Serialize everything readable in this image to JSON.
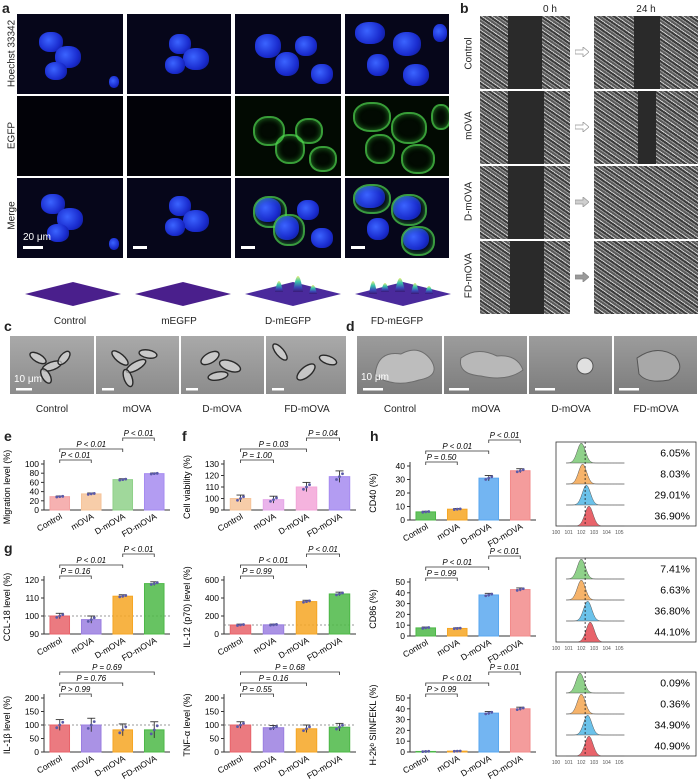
{
  "panel_a": {
    "label": "a",
    "rows": [
      "Hoechst 33342",
      "EGFP",
      "Merge"
    ],
    "columns": [
      "Control",
      "mEGFP",
      "D-mEGFP",
      "FD-mEGFP"
    ],
    "scale_bar": "20 μm"
  },
  "panel_b": {
    "label": "b",
    "times": [
      "0 h",
      "24 h"
    ],
    "rows": [
      "Control",
      "mOVA",
      "D-mOVA",
      "FD-mOVA"
    ]
  },
  "panel_c": {
    "label": "c",
    "columns": [
      "Control",
      "mOVA",
      "D-mOVA",
      "FD-mOVA"
    ],
    "scale_bar": "10 μm"
  },
  "panel_d": {
    "label": "d",
    "columns": [
      "Control",
      "mOVA",
      "D-mOVA",
      "FD-mOVA"
    ],
    "scale_bar": "10 μm"
  },
  "panel_e": "e",
  "panel_f": "f",
  "panel_g": "g",
  "panel_h": "h",
  "colors": {
    "control_red": "#e8636a",
    "light_red": "#f4a3a3",
    "peach": "#f6c49a",
    "green": "#8fd18a",
    "green_dark": "#4cb847",
    "purple": "#a68bf0",
    "violet_light": "#d9a8f2",
    "orange": "#f6a623",
    "blue": "#5aa8f0",
    "pink": "#f28b8b"
  },
  "chart_data": [
    {
      "id": "e",
      "type": "bar",
      "categories": [
        "Control",
        "mOVA",
        "D-mOVA",
        "FD-mOVA"
      ],
      "values": [
        29,
        35,
        66,
        79
      ],
      "errors": [
        1.5,
        2,
        2,
        1.5
      ],
      "ylabel": "Migration level (%)",
      "ylim": [
        0,
        100
      ],
      "yticks": [
        0,
        20,
        40,
        60,
        80,
        100
      ],
      "colors": [
        "#f4a3a3",
        "#f6c49a",
        "#8fd18a",
        "#a68bf0"
      ],
      "annotations": [
        {
          "from": 0,
          "to": 2,
          "text": "P < 0.01",
          "level": 2
        },
        {
          "from": 0,
          "to": 1,
          "text": "P < 0.01",
          "level": 1
        },
        {
          "from": 2,
          "to": 3,
          "text": "P < 0.01",
          "level": 3
        }
      ]
    },
    {
      "id": "f",
      "type": "bar",
      "categories": [
        "Control",
        "mOVA",
        "D-mOVA",
        "FD-mOVA"
      ],
      "values": [
        100,
        99,
        110,
        119
      ],
      "errors": [
        3,
        3,
        4,
        5
      ],
      "ylabel": "Cell viability (%)",
      "ylim": [
        90,
        130
      ],
      "yticks": [
        90,
        100,
        110,
        120,
        130
      ],
      "colors": [
        "#f6c49a",
        "#e6a7e8",
        "#f3a6d8",
        "#a68bf0"
      ],
      "annotations": [
        {
          "from": 0,
          "to": 2,
          "text": "P = 0.03",
          "level": 2
        },
        {
          "from": 0,
          "to": 1,
          "text": "P = 1.00",
          "level": 1
        },
        {
          "from": 2,
          "to": 3,
          "text": "P = 0.04",
          "level": 3
        }
      ]
    },
    {
      "id": "g1",
      "type": "bar",
      "categories": [
        "Control",
        "mOVA",
        "D-mOVA",
        "FD-mOVA"
      ],
      "values": [
        100,
        98,
        111,
        118
      ],
      "errors": [
        1.5,
        2,
        0.8,
        1
      ],
      "ylabel": "CCL-18 level (%)",
      "ylim": [
        90,
        120
      ],
      "yticks": [
        90,
        100,
        110,
        120
      ],
      "colors": [
        "#e8636a",
        "#9b7fe0",
        "#f6a623",
        "#4cb847"
      ],
      "baseline": 100,
      "annotations": [
        {
          "from": 0,
          "to": 2,
          "text": "P < 0.01",
          "level": 2
        },
        {
          "from": 0,
          "to": 1,
          "text": "P = 0.16",
          "level": 1
        },
        {
          "from": 2,
          "to": 3,
          "text": "P < 0.01",
          "level": 3
        }
      ]
    },
    {
      "id": "g2",
      "type": "bar",
      "categories": [
        "Control",
        "mOVA",
        "D-mOVA",
        "FD-mOVA"
      ],
      "values": [
        100,
        102,
        360,
        445
      ],
      "errors": [
        10,
        8,
        15,
        20
      ],
      "ylabel": "IL-12 (p70) level (%)",
      "ylim": [
        0,
        600
      ],
      "yticks": [
        0,
        200,
        400,
        600
      ],
      "colors": [
        "#e8636a",
        "#9b7fe0",
        "#f6a623",
        "#4cb847"
      ],
      "baseline": 100,
      "annotations": [
        {
          "from": 0,
          "to": 2,
          "text": "P < 0.01",
          "level": 2
        },
        {
          "from": 0,
          "to": 1,
          "text": "P = 0.99",
          "level": 1
        },
        {
          "from": 2,
          "to": 3,
          "text": "P < 0.01",
          "level": 3
        }
      ]
    },
    {
      "id": "g3",
      "type": "bar",
      "categories": [
        "Control",
        "mOVA",
        "D-mOVA",
        "FD-mOVA"
      ],
      "values": [
        100,
        100,
        82,
        82
      ],
      "errors": [
        20,
        25,
        22,
        30
      ],
      "ylabel": "IL-1β level (%)",
      "ylim": [
        0,
        200
      ],
      "yticks": [
        0,
        50,
        100,
        150,
        200
      ],
      "colors": [
        "#e8636a",
        "#9b7fe0",
        "#f6a623",
        "#4cb847"
      ],
      "baseline": 100,
      "annotations": [
        {
          "from": 0,
          "to": 3,
          "text": "P = 0.69",
          "level": 3
        },
        {
          "from": 0,
          "to": 2,
          "text": "P = 0.76",
          "level": 2
        },
        {
          "from": 0,
          "to": 1,
          "text": "P > 0.99",
          "level": 1
        }
      ]
    },
    {
      "id": "g4",
      "type": "bar",
      "categories": [
        "Control",
        "mOVA",
        "D-mOVA",
        "FD-mOVA"
      ],
      "values": [
        100,
        90,
        86,
        92
      ],
      "errors": [
        12,
        8,
        14,
        14
      ],
      "ylabel": "TNF-α level (%)",
      "ylim": [
        0,
        200
      ],
      "yticks": [
        0,
        50,
        100,
        150,
        200
      ],
      "colors": [
        "#e8636a",
        "#9b7fe0",
        "#f6a623",
        "#4cb847"
      ],
      "baseline": 100,
      "annotations": [
        {
          "from": 0,
          "to": 3,
          "text": "P = 0.68",
          "level": 3
        },
        {
          "from": 0,
          "to": 2,
          "text": "P = 0.16",
          "level": 2
        },
        {
          "from": 0,
          "to": 1,
          "text": "P = 0.55",
          "level": 1
        }
      ]
    },
    {
      "id": "h1",
      "type": "bar",
      "categories": [
        "Control",
        "mOVA",
        "D-mOVA",
        "FD-mOVA"
      ],
      "values": [
        6,
        8,
        31,
        36.5
      ],
      "errors": [
        0.5,
        0.5,
        2,
        1.5
      ],
      "ylabel": "CD40 (%)",
      "ylim": [
        0,
        40
      ],
      "yticks": [
        0,
        10,
        20,
        30,
        40
      ],
      "colors": [
        "#4cb847",
        "#f6a623",
        "#5aa8f0",
        "#f28b8b"
      ],
      "annotations": [
        {
          "from": 0,
          "to": 2,
          "text": "P < 0.01",
          "level": 2
        },
        {
          "from": 0,
          "to": 1,
          "text": "P = 0.50",
          "level": 1
        },
        {
          "from": 2,
          "to": 3,
          "text": "P < 0.01",
          "level": 3
        }
      ]
    },
    {
      "id": "h2",
      "type": "bar",
      "categories": [
        "Control",
        "mOVA",
        "D-mOVA",
        "FD-mOVA"
      ],
      "values": [
        7.5,
        7,
        38,
        43
      ],
      "errors": [
        0.8,
        0.6,
        1.5,
        1.5
      ],
      "ylabel": "CD86 (%)",
      "ylim": [
        0,
        50
      ],
      "yticks": [
        0,
        10,
        20,
        30,
        40,
        50
      ],
      "colors": [
        "#4cb847",
        "#f6a623",
        "#5aa8f0",
        "#f28b8b"
      ],
      "annotations": [
        {
          "from": 0,
          "to": 2,
          "text": "P < 0.01",
          "level": 2
        },
        {
          "from": 0,
          "to": 1,
          "text": "P = 0.99",
          "level": 1
        },
        {
          "from": 2,
          "to": 3,
          "text": "P < 0.01",
          "level": 3
        }
      ]
    },
    {
      "id": "h3",
      "type": "bar",
      "categories": [
        "Control",
        "mOVA",
        "D-mOVA",
        "FD-mOVA"
      ],
      "values": [
        0.5,
        0.8,
        36,
        40
      ],
      "errors": [
        0.3,
        0.3,
        1.5,
        1.5
      ],
      "ylabel": "H-2kᵇ SIINFEKL (%)",
      "ylim": [
        0,
        50
      ],
      "yticks": [
        0,
        10,
        20,
        30,
        40,
        50
      ],
      "colors": [
        "#4cb847",
        "#f6a623",
        "#5aa8f0",
        "#f28b8b"
      ],
      "annotations": [
        {
          "from": 0,
          "to": 2,
          "text": "P < 0.01",
          "level": 2
        },
        {
          "from": 0,
          "to": 1,
          "text": "P > 0.99",
          "level": 1
        },
        {
          "from": 2,
          "to": 3,
          "text": "P = 0.01",
          "level": 3
        }
      ]
    },
    {
      "id": "flow1",
      "type": "area",
      "series_colors": [
        "#8fd18a",
        "#f6b36a",
        "#6bc2ea",
        "#e8636a"
      ],
      "percent_labels": [
        "6.05%",
        "8.03%",
        "29.01%",
        "36.90%"
      ],
      "peak_positions": [
        2.0,
        2.1,
        2.4,
        2.6
      ]
    },
    {
      "id": "flow2",
      "type": "area",
      "series_colors": [
        "#8fd18a",
        "#f6b36a",
        "#6bc2ea",
        "#e8636a"
      ],
      "percent_labels": [
        "7.41%",
        "6.63%",
        "36.80%",
        "44.10%"
      ],
      "peak_positions": [
        2.0,
        2.0,
        2.5,
        2.7
      ]
    },
    {
      "id": "flow3",
      "type": "area",
      "series_colors": [
        "#8fd18a",
        "#f6b36a",
        "#6bc2ea",
        "#e8636a"
      ],
      "percent_labels": [
        "0.09%",
        "0.36%",
        "34.90%",
        "40.90%"
      ],
      "peak_positions": [
        1.9,
        2.0,
        2.5,
        2.6
      ]
    }
  ]
}
